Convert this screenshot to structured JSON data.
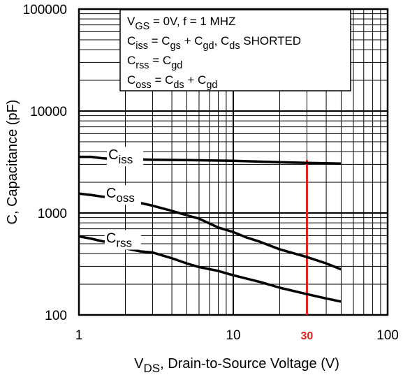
{
  "chart_data": {
    "type": "line",
    "x_scale": "log",
    "y_scale": "log",
    "xlim": [
      1,
      100
    ],
    "ylim": [
      100,
      100000
    ],
    "grid": true,
    "xlabel": {
      "main": "V",
      "sub": "DS",
      "rest": ", Drain-to-Source Voltage (V)"
    },
    "ylabel": "C, Capacitance (pF)",
    "x_ticks": [
      {
        "value": 1,
        "label": "1"
      },
      {
        "value": 10,
        "label": "10"
      },
      {
        "value": 100,
        "label": "100"
      }
    ],
    "y_ticks": [
      {
        "value": 100,
        "label": "100"
      },
      {
        "value": 1000,
        "label": "1000"
      },
      {
        "value": 10000,
        "label": "10000"
      },
      {
        "value": 100000,
        "label": "100000"
      }
    ],
    "annotation_box": {
      "lines": [
        [
          [
            "V",
            "n"
          ],
          [
            "GS",
            "s"
          ],
          [
            "   = 0V,        f = 1 MHZ",
            "n"
          ]
        ],
        [
          [
            "C",
            "n"
          ],
          [
            "iss",
            "s"
          ],
          [
            "   = C",
            "n"
          ],
          [
            "gs",
            "s"
          ],
          [
            " + C",
            "n"
          ],
          [
            "gd",
            "s"
          ],
          [
            ", C",
            "n"
          ],
          [
            "ds",
            "s"
          ],
          [
            " SHORTED",
            "n"
          ]
        ],
        [
          [
            "C",
            "n"
          ],
          [
            "rss",
            "s"
          ],
          [
            "   = C",
            "n"
          ],
          [
            "gd",
            "s"
          ]
        ],
        [
          [
            "C",
            "n"
          ],
          [
            "oss",
            "s"
          ],
          [
            "  = C",
            "n"
          ],
          [
            "ds",
            "s"
          ],
          [
            " + C",
            "n"
          ],
          [
            "gd",
            "s"
          ]
        ]
      ]
    },
    "series": [
      {
        "name": "Ciss",
        "label_main": "C",
        "label_sub": "iss",
        "label_at_x": 1.55,
        "x": [
          1,
          1.2,
          1.4,
          1.6,
          2,
          3,
          5,
          10,
          20,
          30,
          50
        ],
        "y": [
          3550,
          3550,
          3450,
          3400,
          3380,
          3330,
          3300,
          3250,
          3150,
          3100,
          3050
        ]
      },
      {
        "name": "Coss",
        "label_main": "C",
        "label_sub": "oss",
        "label_at_x": 1.5,
        "x": [
          1,
          1.2,
          1.4,
          1.6,
          2,
          3,
          4,
          5,
          6,
          8,
          10,
          12,
          15,
          20,
          30,
          40,
          50
        ],
        "y": [
          1550,
          1500,
          1450,
          1420,
          1350,
          1180,
          1050,
          950,
          880,
          720,
          650,
          580,
          520,
          440,
          370,
          320,
          280
        ]
      },
      {
        "name": "Crss",
        "label_main": "C",
        "label_sub": "rss",
        "label_at_x": 1.5,
        "x": [
          1,
          1.2,
          1.4,
          1.6,
          2,
          2.5,
          3,
          4,
          5,
          6,
          8,
          10,
          15,
          20,
          30,
          40,
          50
        ],
        "y": [
          590,
          560,
          530,
          510,
          450,
          420,
          410,
          360,
          320,
          295,
          270,
          245,
          210,
          185,
          160,
          145,
          135
        ]
      }
    ],
    "marker_line": {
      "x": 30,
      "label": "30",
      "color": "#e0201c"
    },
    "colors": {
      "curve": "#000000",
      "grid": "#000000",
      "marker": "#e0201c"
    }
  }
}
